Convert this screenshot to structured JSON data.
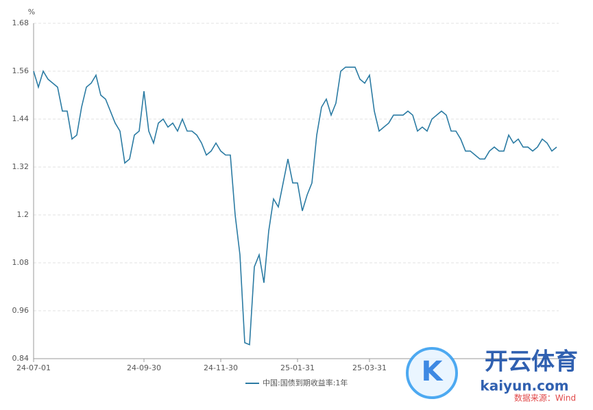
{
  "chart_data": {
    "type": "line",
    "y_unit": "%",
    "categories": [
      "24-07-01",
      null,
      null,
      null,
      null,
      null,
      null,
      null,
      null,
      null,
      null,
      null,
      null,
      null,
      null,
      null,
      null,
      null,
      null,
      null,
      null,
      null,
      null,
      "24-09-30",
      null,
      null,
      null,
      null,
      null,
      null,
      null,
      null,
      null,
      null,
      null,
      null,
      null,
      null,
      null,
      "24-11-30",
      null,
      null,
      null,
      null,
      null,
      null,
      null,
      null,
      null,
      null,
      null,
      null,
      null,
      null,
      null,
      "25-01-31",
      null,
      null,
      null,
      null,
      null,
      null,
      null,
      null,
      null,
      null,
      null,
      null,
      null,
      null,
      "25-03-31",
      null,
      null,
      null,
      null,
      null,
      null,
      null,
      null,
      null,
      null,
      null,
      null,
      null,
      null,
      null,
      null,
      null,
      null,
      null,
      null,
      null,
      null,
      null,
      null,
      null,
      null,
      null,
      null,
      null,
      null,
      null,
      null,
      null,
      null,
      null,
      null,
      null,
      null,
      null
    ],
    "series": [
      {
        "name": "中国:国债到期收益率:1年",
        "color": "#2b7ba3",
        "values": [
          1.56,
          1.52,
          1.56,
          1.54,
          1.53,
          1.52,
          1.46,
          1.46,
          1.39,
          1.4,
          1.47,
          1.52,
          1.53,
          1.55,
          1.5,
          1.49,
          1.46,
          1.43,
          1.41,
          1.33,
          1.34,
          1.4,
          1.41,
          1.51,
          1.41,
          1.38,
          1.43,
          1.44,
          1.42,
          1.43,
          1.41,
          1.44,
          1.41,
          1.41,
          1.4,
          1.38,
          1.35,
          1.36,
          1.38,
          1.36,
          1.35,
          1.35,
          1.2,
          1.1,
          0.88,
          0.875,
          1.07,
          1.1,
          1.03,
          1.16,
          1.24,
          1.22,
          1.28,
          1.34,
          1.28,
          1.28,
          1.21,
          1.25,
          1.28,
          1.4,
          1.47,
          1.49,
          1.45,
          1.48,
          1.56,
          1.57,
          1.57,
          1.57,
          1.54,
          1.53,
          1.55,
          1.46,
          1.41,
          1.42,
          1.43,
          1.45,
          1.45,
          1.45,
          1.46,
          1.45,
          1.41,
          1.42,
          1.41,
          1.44,
          1.45,
          1.46,
          1.45,
          1.41,
          1.41,
          1.39,
          1.36,
          1.36,
          1.35,
          1.34,
          1.34,
          1.36,
          1.37,
          1.36,
          1.36,
          1.4,
          1.38,
          1.39,
          1.37,
          1.37,
          1.36,
          1.37,
          1.39,
          1.38,
          1.36,
          1.37
        ]
      }
    ],
    "ylim": [
      0.84,
      1.68
    ],
    "yticks": [
      0.84,
      0.96,
      1.08,
      1.2,
      1.32,
      1.44,
      1.56,
      1.68
    ],
    "grid": true,
    "legend": "bottom",
    "watermark": {
      "brand": "开云体育",
      "site": "kaiyun.com",
      "source": "数据来源：Wind"
    }
  }
}
